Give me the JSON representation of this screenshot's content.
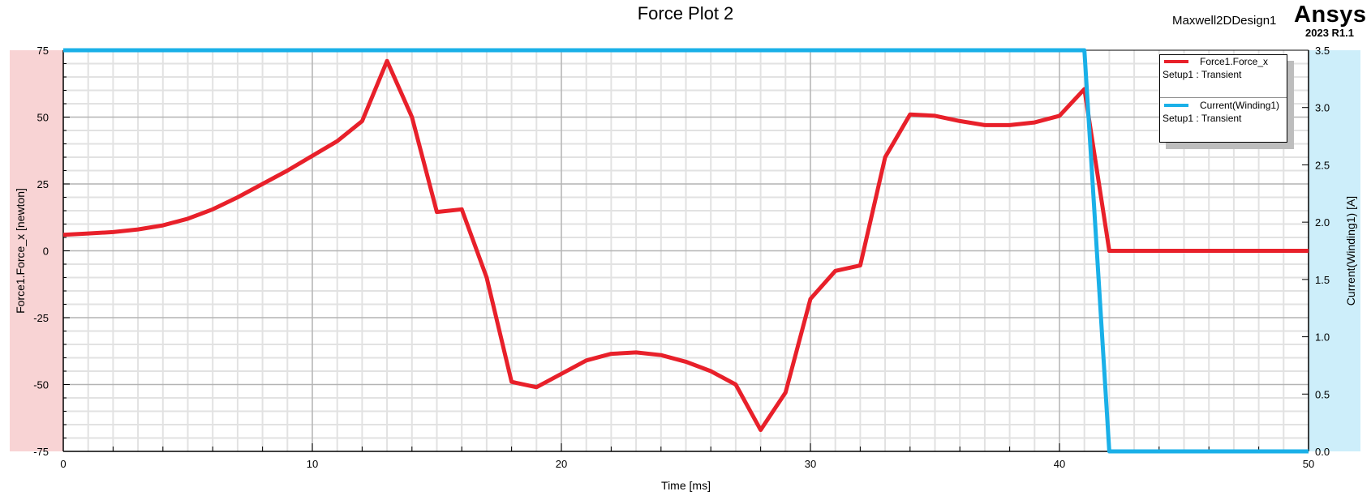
{
  "header": {
    "title": "Force Plot 2",
    "design_name": "Maxwell2DDesign1",
    "brand": "Ansys",
    "version": "2023 R1.1"
  },
  "legend": {
    "entries": [
      {
        "name": "Force1.Force_x",
        "setup": "Setup1 : Transient",
        "color": "#e8202a"
      },
      {
        "name": "Current(Winding1)",
        "setup": "Setup1 : Transient",
        "color": "#1ab0e8"
      }
    ]
  },
  "chart_data": {
    "type": "line",
    "title": "Force Plot 2",
    "xlabel": "Time [ms]",
    "ylabel_left": "Force1.Force_x [newton]",
    "ylabel_right": "Current(Winding1) [A]",
    "xlim": [
      0,
      50
    ],
    "ylim_left": [
      -75,
      75
    ],
    "ylim_right": [
      0,
      3.5
    ],
    "x_ticks": [
      "0",
      "10",
      "20",
      "30",
      "40",
      "50"
    ],
    "y_left_ticks": [
      "75",
      "50",
      "25",
      "0",
      "-25",
      "-50",
      "-75"
    ],
    "y_right_ticks": [
      "3.5",
      "3.0",
      "2.5",
      "2.0",
      "1.5",
      "1.0",
      "0.5",
      "0.0"
    ],
    "grid": true,
    "legend_position": "top-right",
    "series": [
      {
        "name": "Force1.Force_x",
        "axis": "left",
        "color": "#e8202a",
        "x": [
          0,
          1,
          2,
          3,
          4,
          5,
          6,
          7,
          8,
          9,
          10,
          11,
          12,
          13,
          14,
          15,
          16,
          17,
          18,
          19,
          20,
          21,
          22,
          23,
          24,
          25,
          26,
          27,
          28,
          29,
          30,
          31,
          32,
          33,
          34,
          35,
          36,
          37,
          38,
          39,
          40,
          41,
          42,
          50
        ],
        "y": [
          6,
          6.5,
          7,
          8,
          9.5,
          12,
          15.5,
          20,
          25,
          30,
          35.5,
          41,
          48.5,
          71,
          50,
          14.5,
          15.5,
          -10,
          -49,
          -51,
          -46,
          -41,
          -38.5,
          -38,
          -39,
          -41.5,
          -45,
          -50,
          -67,
          -53,
          -18,
          -7.5,
          -5.5,
          35,
          51,
          50.5,
          48.5,
          47,
          47,
          48,
          50.5,
          60.5,
          0,
          0
        ]
      },
      {
        "name": "Current(Winding1)",
        "axis": "right",
        "color": "#1ab0e8",
        "x": [
          0,
          41,
          42,
          50
        ],
        "y": [
          3.5,
          3.5,
          0,
          0
        ]
      }
    ]
  }
}
